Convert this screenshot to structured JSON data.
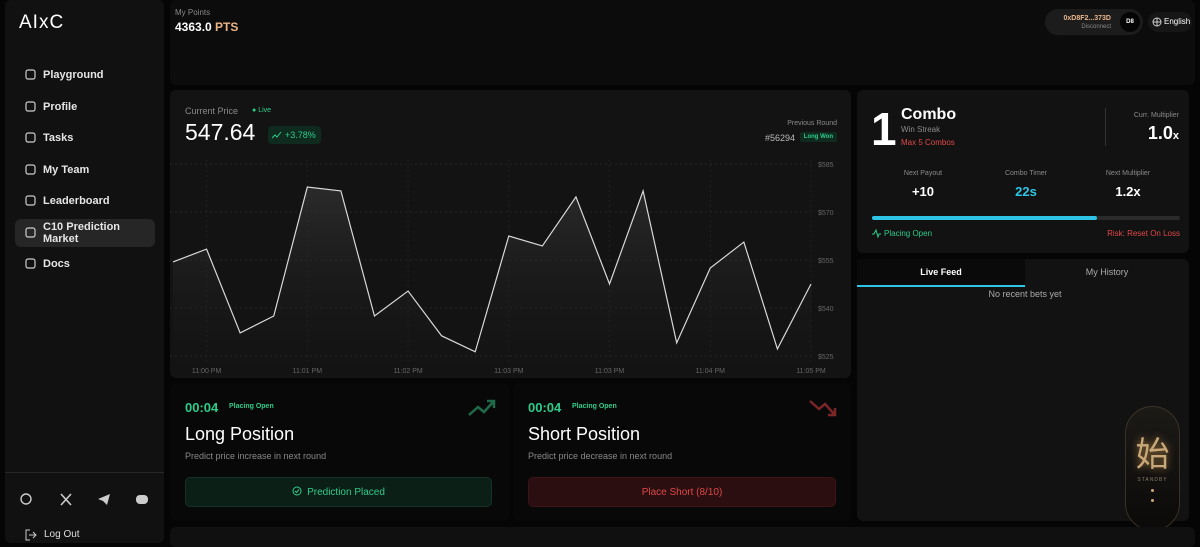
{
  "sidebar": {
    "logo": "AIxC",
    "nav": [
      "Playground",
      "Profile",
      "Tasks",
      "My Team",
      "Leaderboard",
      "C10 Prediction Market",
      "Docs"
    ],
    "logout": "Log Out"
  },
  "header": {
    "points_label": "My Points",
    "points_value": "4363.0",
    "points_unit": "PTS",
    "wallet": "0xD8F2...373D",
    "disconnect": "Disconnect",
    "avatar": "D8",
    "language": "English"
  },
  "price": {
    "label": "Current Price",
    "status": "Live",
    "value": "547.64",
    "change": "+3.78%",
    "previous_label": "Previous Round",
    "previous_id": "#56294",
    "previous_result": "Long Won"
  },
  "chart_data": {
    "type": "line",
    "categories": [
      null,
      "11:00 PM",
      null,
      null,
      "11:01 PM",
      null,
      null,
      "11:02 PM",
      null,
      null,
      "11:03 PM",
      null,
      null,
      "11:03 PM",
      null,
      null,
      "11:04 PM",
      null,
      null,
      "11:05 PM"
    ],
    "values": [
      554.4,
      558.4,
      532.2,
      537.5,
      577.8,
      576.6,
      537.5,
      545.3,
      531.3,
      526.3,
      562.5,
      559.4,
      574.7,
      547.5,
      576.6,
      529.1,
      552.5,
      560.6,
      527.2,
      547.5
    ],
    "color": "#d9d9d9",
    "ylim": [
      525,
      585
    ],
    "yticks": [
      {
        "value": 585,
        "label": "$585"
      },
      {
        "value": 570,
        "label": "$570"
      },
      {
        "value": 555,
        "label": "$555"
      },
      {
        "value": 540,
        "label": "$540"
      },
      {
        "value": 525,
        "label": "$525"
      }
    ],
    "grid": true
  },
  "combo": {
    "count": "1",
    "title": "Combo",
    "subtitle": "Win Streak",
    "limit": "Max 5 Combos",
    "multiplier_label": "Curr. Multiplier",
    "multiplier": "1.0",
    "multiplier_unit": "x",
    "stats": [
      {
        "label": "Next Payout",
        "value": "+10"
      },
      {
        "label": "Combo Timer",
        "value": "22s"
      },
      {
        "label": "Next Multiplier",
        "value": "1.2x"
      }
    ],
    "status": "Placing Open",
    "risk": "Risk: Reset On Loss"
  },
  "feed": {
    "tabs": [
      "Live Feed",
      "My History"
    ],
    "empty": "No recent bets yet",
    "standby_char": "始",
    "standby": "STANDBY"
  },
  "positions": [
    {
      "timer": "00:04",
      "status": "Placing Open",
      "title": "Long Position",
      "description": "Predict price increase in next round",
      "button": "Prediction Placed"
    },
    {
      "timer": "00:04",
      "status": "Placing Open",
      "title": "Short Position",
      "description": "Predict price decrease in next round",
      "button": "Place Short (8/10)"
    }
  ]
}
